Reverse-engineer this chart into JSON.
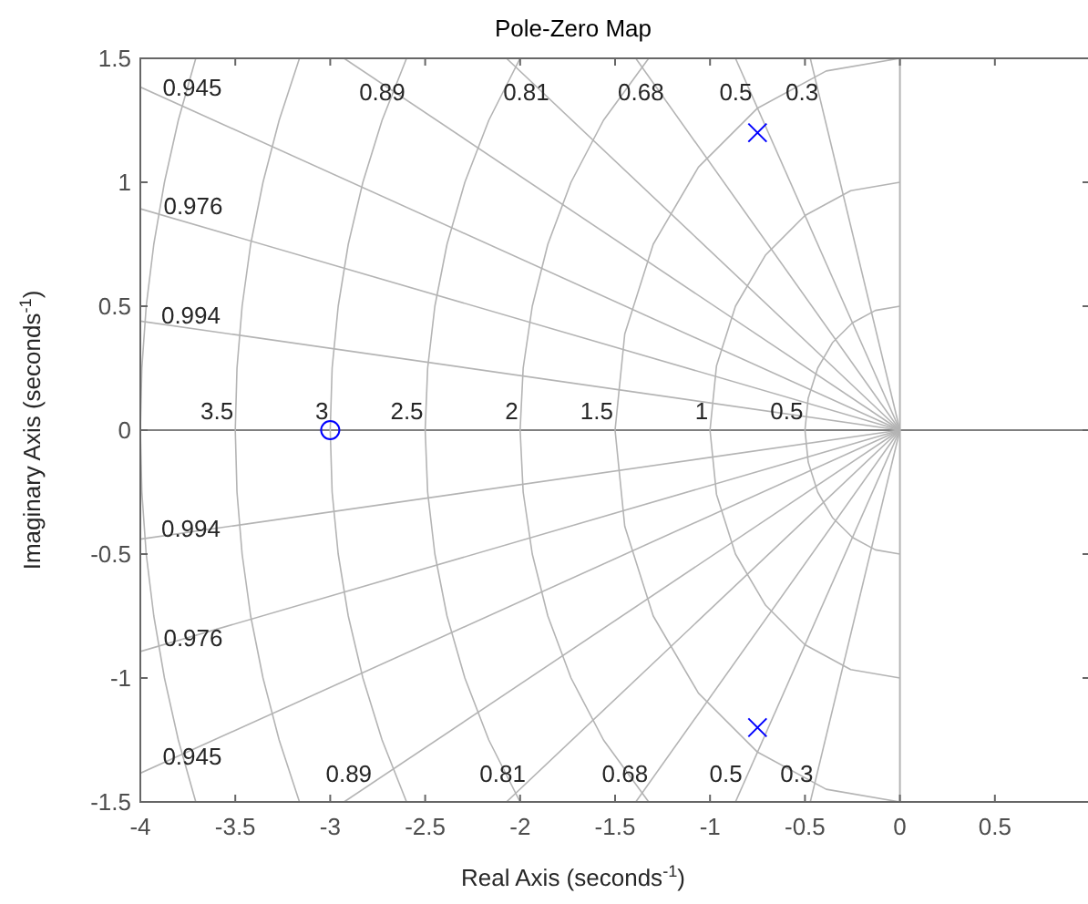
{
  "chart_data": {
    "type": "scatter",
    "title": "Pole-Zero Map",
    "xlabel": "Real Axis (seconds$^{-1}$)",
    "ylabel": "Imaginary Axis (seconds$^{-1}$)",
    "xlim": [
      -4,
      1
    ],
    "xticks": [
      -4,
      -3.5,
      -3,
      -2.5,
      -2,
      -1.5,
      -1,
      -0.5,
      0,
      0.5
    ],
    "ylim": [
      -1.5,
      1.5
    ],
    "yticks": [
      -1.5,
      -1,
      -0.5,
      0,
      0.5,
      1,
      1.5
    ],
    "ref_lines": [
      {
        "axis": "y",
        "value": 0,
        "color": "#808080"
      },
      {
        "axis": "x",
        "value": 0,
        "color": "#b4b4b4"
      }
    ],
    "series": [
      {
        "type": "line",
        "color": "#b4b4b4",
        "x": [
          0,
          -0.472
        ],
        "values": [
          0,
          1.5
        ]
      },
      {
        "type": "line",
        "color": "#b4b4b4",
        "x": [
          0,
          -0.866
        ],
        "values": [
          0,
          1.5
        ]
      },
      {
        "type": "line",
        "color": "#b4b4b4",
        "x": [
          0,
          -1.391
        ],
        "values": [
          0,
          1.5
        ]
      },
      {
        "type": "line",
        "color": "#b4b4b4",
        "x": [
          0,
          -2.072
        ],
        "values": [
          0,
          1.5
        ]
      },
      {
        "type": "line",
        "color": "#b4b4b4",
        "x": [
          0,
          -2.927
        ],
        "values": [
          0,
          1.5
        ]
      },
      {
        "type": "line",
        "color": "#b4b4b4",
        "x": [
          0,
          -4
        ],
        "values": [
          0,
          1.384
        ]
      },
      {
        "type": "line",
        "color": "#b4b4b4",
        "x": [
          0,
          -4
        ],
        "values": [
          0,
          0.893
        ]
      },
      {
        "type": "line",
        "color": "#b4b4b4",
        "x": [
          0,
          -4
        ],
        "values": [
          0,
          0.44
        ]
      },
      {
        "type": "line",
        "color": "#b4b4b4",
        "x": [
          0,
          -0.472
        ],
        "values": [
          0,
          -1.5
        ]
      },
      {
        "type": "line",
        "color": "#b4b4b4",
        "x": [
          0,
          -0.866
        ],
        "values": [
          0,
          -1.5
        ]
      },
      {
        "type": "line",
        "color": "#b4b4b4",
        "x": [
          0,
          -1.391
        ],
        "values": [
          0,
          -1.5
        ]
      },
      {
        "type": "line",
        "color": "#b4b4b4",
        "x": [
          0,
          -2.072
        ],
        "values": [
          0,
          -1.5
        ]
      },
      {
        "type": "line",
        "color": "#b4b4b4",
        "x": [
          0,
          -2.927
        ],
        "values": [
          0,
          -1.5
        ]
      },
      {
        "type": "line",
        "color": "#b4b4b4",
        "x": [
          0,
          -4
        ],
        "values": [
          0,
          -1.384
        ]
      },
      {
        "type": "line",
        "color": "#b4b4b4",
        "x": [
          0,
          -4
        ],
        "values": [
          0,
          -0.893
        ]
      },
      {
        "type": "line",
        "color": "#b4b4b4",
        "x": [
          0,
          -4
        ],
        "values": [
          0,
          -0.44
        ]
      },
      {
        "type": "line",
        "color": "#b4b4b4",
        "x": [
          0,
          -0.129,
          -0.25,
          -0.354,
          -0.433,
          -0.483,
          -0.5,
          -0.483,
          -0.433,
          -0.354,
          -0.25,
          -0.129,
          0
        ],
        "values": [
          0.5,
          0.483,
          0.433,
          0.354,
          0.25,
          0.129,
          0,
          -0.129,
          -0.25,
          -0.354,
          -0.433,
          -0.483,
          -0.5
        ]
      },
      {
        "type": "line",
        "color": "#b4b4b4",
        "x": [
          0,
          -0.259,
          -0.5,
          -0.707,
          -0.866,
          -0.966,
          -1,
          -0.966,
          -0.866,
          -0.707,
          -0.5,
          -0.259,
          0
        ],
        "values": [
          1,
          0.966,
          0.866,
          0.707,
          0.5,
          0.259,
          0,
          -0.259,
          -0.5,
          -0.707,
          -0.866,
          -0.966,
          -1
        ]
      },
      {
        "type": "line",
        "color": "#b4b4b4",
        "x": [
          0,
          -0.388,
          -0.75,
          -1.061,
          -1.299,
          -1.449,
          -1.5,
          -1.449,
          -1.299,
          -1.061,
          -0.75,
          -0.388,
          0
        ],
        "values": [
          1.5,
          1.449,
          1.299,
          1.061,
          0.75,
          0.388,
          0,
          -0.388,
          -0.75,
          -1.061,
          -1.299,
          -1.449,
          -1.5
        ]
      },
      {
        "type": "line",
        "color": "#b4b4b4",
        "x": [
          -1.323,
          -1.561,
          -1.732,
          -1.854,
          -1.936,
          -1.984,
          -2,
          -1.984,
          -1.936,
          -1.854,
          -1.732,
          -1.561,
          -1.323
        ],
        "values": [
          1.5,
          1.25,
          1,
          0.75,
          0.5,
          0.25,
          0,
          -0.25,
          -0.5,
          -0.75,
          -1,
          -1.25,
          -1.5
        ]
      },
      {
        "type": "line",
        "color": "#b4b4b4",
        "x": [
          -2,
          -2.165,
          -2.291,
          -2.385,
          -2.449,
          -2.487,
          -2.5,
          -2.487,
          -2.449,
          -2.385,
          -2.291,
          -2.165,
          -2
        ],
        "values": [
          1.5,
          1.25,
          1,
          0.75,
          0.5,
          0.25,
          0,
          -0.25,
          -0.5,
          -0.75,
          -1,
          -1.25,
          -1.5
        ]
      },
      {
        "type": "line",
        "color": "#b4b4b4",
        "x": [
          -2.598,
          -2.727,
          -2.828,
          -2.905,
          -2.958,
          -2.99,
          -3,
          -2.99,
          -2.958,
          -2.905,
          -2.828,
          -2.727,
          -2.598
        ],
        "values": [
          1.5,
          1.25,
          1,
          0.75,
          0.5,
          0.25,
          0,
          -0.25,
          -0.5,
          -0.75,
          -1,
          -1.25,
          -1.5
        ]
      },
      {
        "type": "line",
        "color": "#b4b4b4",
        "x": [
          -3.162,
          -3.269,
          -3.354,
          -3.419,
          -3.464,
          -3.491,
          -3.5,
          -3.491,
          -3.464,
          -3.419,
          -3.354,
          -3.269,
          -3.162
        ],
        "values": [
          1.5,
          1.25,
          1,
          0.75,
          0.5,
          0.25,
          0,
          -0.25,
          -0.5,
          -0.75,
          -1,
          -1.25,
          -1.5
        ]
      },
      {
        "type": "line",
        "color": "#b4b4b4",
        "x": [
          -3.708,
          -3.8,
          -3.873,
          -3.929,
          -3.969,
          -3.992,
          -4,
          -3.992,
          -3.969,
          -3.929,
          -3.873,
          -3.8,
          -3.708
        ],
        "values": [
          1.5,
          1.25,
          1,
          0.75,
          0.5,
          0.25,
          0,
          -0.25,
          -0.5,
          -0.75,
          -1,
          -1.25,
          -1.5
        ]
      },
      {
        "color": "#0000ff",
        "marker": "cross",
        "x": [
          -0.75,
          -0.75
        ],
        "values": [
          1.2,
          -1.2
        ]
      },
      {
        "color": "#0000ff",
        "marker": "circle",
        "x": [
          -3
        ],
        "values": [
          0
        ]
      }
    ],
    "annotations": [
      {
        "text": "0.945",
        "x": -3.902,
        "y": 1.35
      },
      {
        "text": "0.89",
        "x": -2.595,
        "y": 1.33
      },
      {
        "text": "0.81",
        "x": -1.837,
        "y": 1.33
      },
      {
        "text": "0.68",
        "x": -1.233,
        "y": 1.33
      },
      {
        "text": "0.5",
        "x": -0.768,
        "y": 1.33
      },
      {
        "text": "0.3",
        "x": -0.419,
        "y": 1.33
      },
      {
        "text": "0.976",
        "x": -3.897,
        "y": 0.87
      },
      {
        "text": "0.994",
        "x": -3.909,
        "y": 0.43
      },
      {
        "text": "3.5",
        "x": -3.5,
        "y": 0.044
      },
      {
        "text": "3",
        "x": -3,
        "y": 0.044
      },
      {
        "text": "2.5",
        "x": -2.5,
        "y": 0.044
      },
      {
        "text": "2",
        "x": -2,
        "y": 0.044
      },
      {
        "text": "1.5",
        "x": -1.5,
        "y": 0.044
      },
      {
        "text": "1",
        "x": -1,
        "y": 0.044
      },
      {
        "text": "0.5",
        "x": -0.5,
        "y": 0.044
      },
      {
        "text": "0.994",
        "x": -3.909,
        "y": -0.43
      },
      {
        "text": "0.976",
        "x": -3.897,
        "y": -0.87
      },
      {
        "text": "0.945",
        "x": -3.902,
        "y": -1.35
      },
      {
        "text": "0.89",
        "x": -2.771,
        "y": -1.42
      },
      {
        "text": "0.81",
        "x": -1.961,
        "y": -1.42
      },
      {
        "text": "0.68",
        "x": -1.317,
        "y": -1.42
      },
      {
        "text": "0.5",
        "x": -0.82,
        "y": -1.42
      },
      {
        "text": "0.3",
        "x": -0.447,
        "y": -1.42
      }
    ]
  }
}
